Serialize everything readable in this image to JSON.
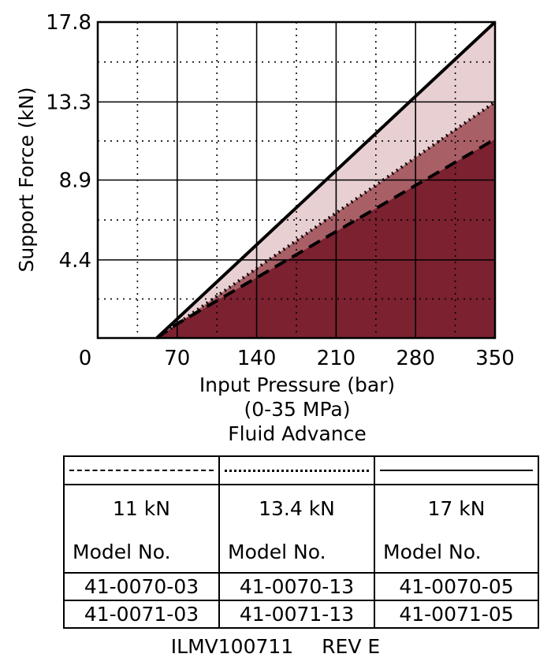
{
  "chart_data": {
    "type": "area",
    "xlabel": "Input Pressure (bar)",
    "xlabel_sub": "(0-35 MPa)",
    "xlabel_mode": "Fluid Advance",
    "ylabel": "Support Force (kN)",
    "xlim": [
      0,
      350
    ],
    "ylim": [
      0,
      17.8
    ],
    "x_ticks": [
      "0",
      "70",
      "140",
      "210",
      "280",
      "350"
    ],
    "y_ticks": [
      "4.4",
      "8.9",
      "13.3",
      "17.8"
    ],
    "grid": true,
    "series": [
      {
        "name": "17 kN",
        "line_style": "solid",
        "fill": "#e8cfd2",
        "x": [
          52,
          350
        ],
        "y": [
          0,
          17.8
        ]
      },
      {
        "name": "13.4 kN",
        "line_style": "dotted",
        "fill": "#a85f66",
        "x": [
          52,
          70,
          350
        ],
        "y": [
          0,
          0.8,
          13.3
        ]
      },
      {
        "name": "11 kN",
        "line_style": "dashed",
        "fill": "#7b2130",
        "x": [
          52,
          70,
          350
        ],
        "y": [
          0,
          0.8,
          11.2
        ]
      }
    ]
  },
  "legend_table": {
    "model_header": "Model No.",
    "columns": [
      {
        "style": "dashed",
        "force": "11 kN",
        "models": [
          "41-0070-03",
          "41-0071-03"
        ]
      },
      {
        "style": "dotted",
        "force": "13.4 kN",
        "models": [
          "41-0070-13",
          "41-0071-13"
        ]
      },
      {
        "style": "solid",
        "force": "17 kN",
        "models": [
          "41-0070-05",
          "41-0071-05"
        ]
      }
    ]
  },
  "drawing_id": "ILMV100711",
  "revision": "REV E"
}
